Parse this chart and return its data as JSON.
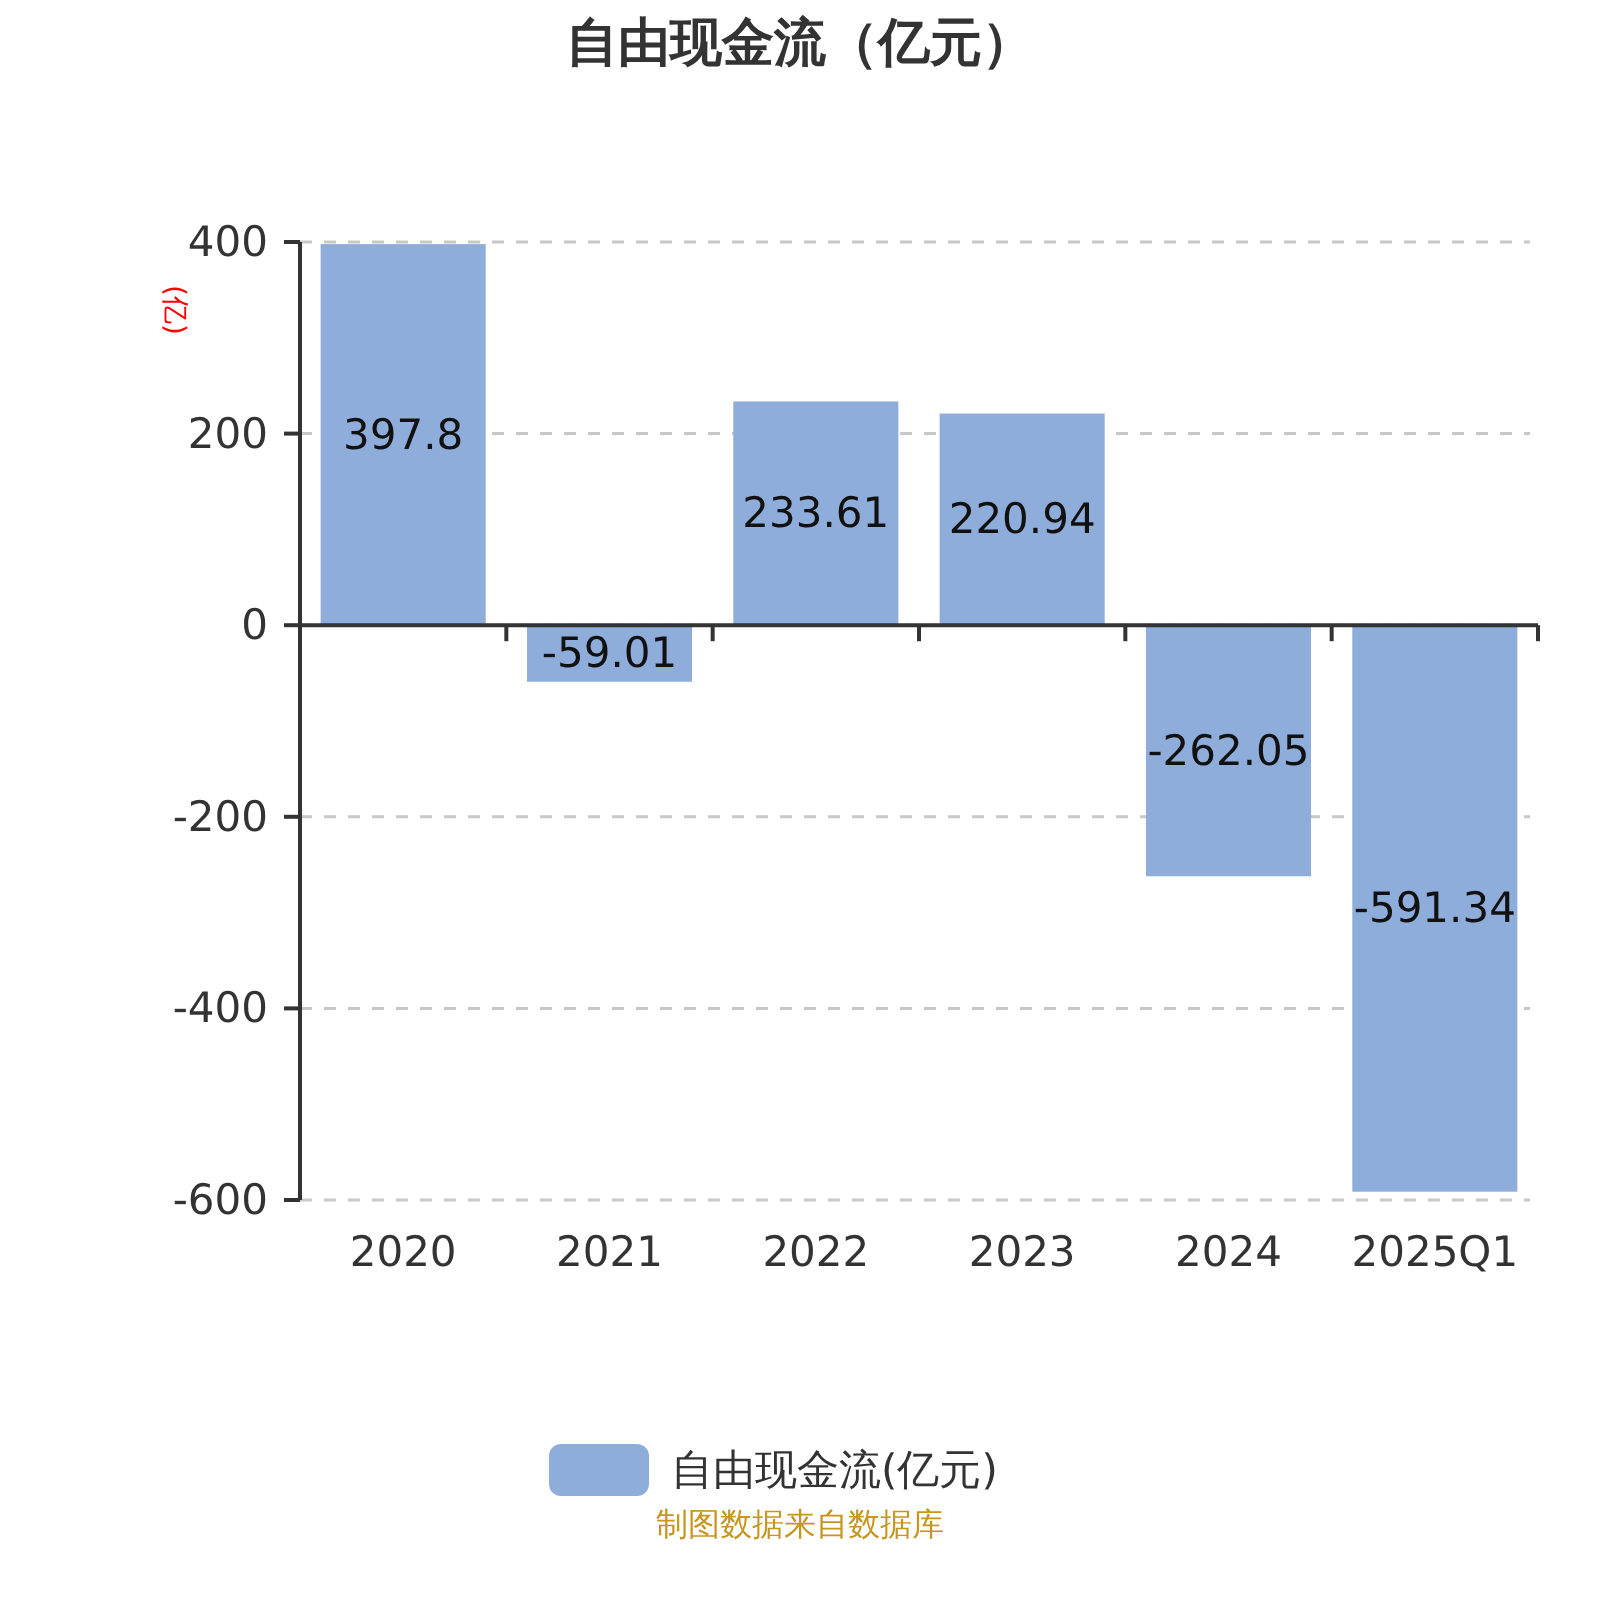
{
  "chart_data": {
    "type": "bar",
    "title": "自由现金流（亿元）",
    "ylabel": "(亿)",
    "categories": [
      "2020",
      "2021",
      "2022",
      "2023",
      "2024",
      "2025Q1"
    ],
    "series": [
      {
        "name": "自由现金流(亿元)",
        "color": "#8eaddb",
        "values": [
          397.8,
          -59.01,
          233.61,
          220.94,
          -262.05,
          -591.34
        ]
      }
    ],
    "ylim": [
      -600,
      400
    ],
    "yticks": [
      -600,
      -400,
      -200,
      0,
      200,
      400
    ],
    "grid": "y",
    "legend": "bottom",
    "data_labels": true,
    "annotations": [
      "制图数据来自数据库"
    ]
  }
}
